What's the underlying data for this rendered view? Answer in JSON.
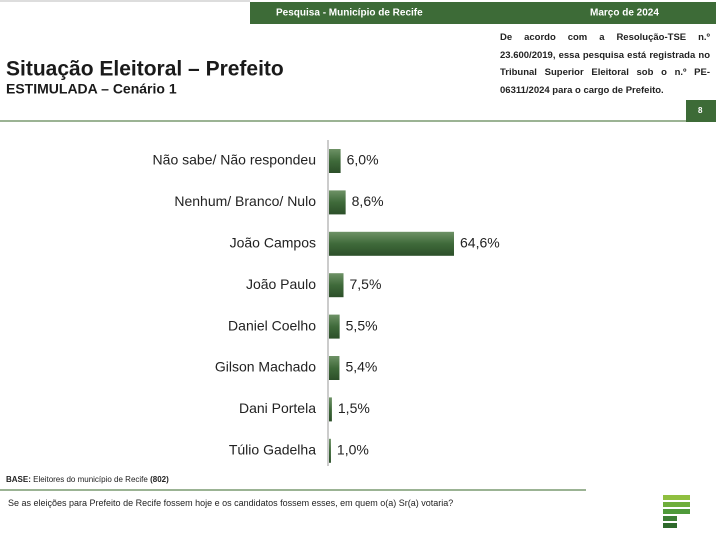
{
  "header": {
    "survey": "Pesquisa - Município de Recife",
    "date": "Março de 2024"
  },
  "note": "De acordo com a Resolução-TSE n.º 23.600/2019, essa pesquisa está registrada no Tribunal Superior Eleitoral sob o n.º PE-06311/2024 para o cargo de Prefeito.",
  "page": "8",
  "base": {
    "label": "BASE:",
    "text": "Eleitores do município de Recife",
    "n": "(802)"
  },
  "question": "Se as eleições para Prefeito de Recife fossem hoje e os candidatos fossem esses, em quem o(a) Sr(a) votaria?",
  "chart_data": {
    "type": "bar",
    "orientation": "horizontal",
    "title": "Situação Eleitoral – Prefeito",
    "subtitle": "ESTIMULADA – Cenário 1",
    "categories": [
      "Não sabe/ Não respondeu",
      "Nenhum/ Branco/ Nulo",
      "João Campos",
      "João Paulo",
      "Daniel Coelho",
      "Gilson Machado",
      "Dani Portela",
      "Túlio Gadelha"
    ],
    "values": [
      6.0,
      8.6,
      64.6,
      7.5,
      5.5,
      5.4,
      1.5,
      1.0
    ],
    "value_labels": [
      "6,0%",
      "8,6%",
      "64,6%",
      "7,5%",
      "5,5%",
      "5,4%",
      "1,5%",
      "1,0%"
    ],
    "color": "#3f6a3a"
  }
}
